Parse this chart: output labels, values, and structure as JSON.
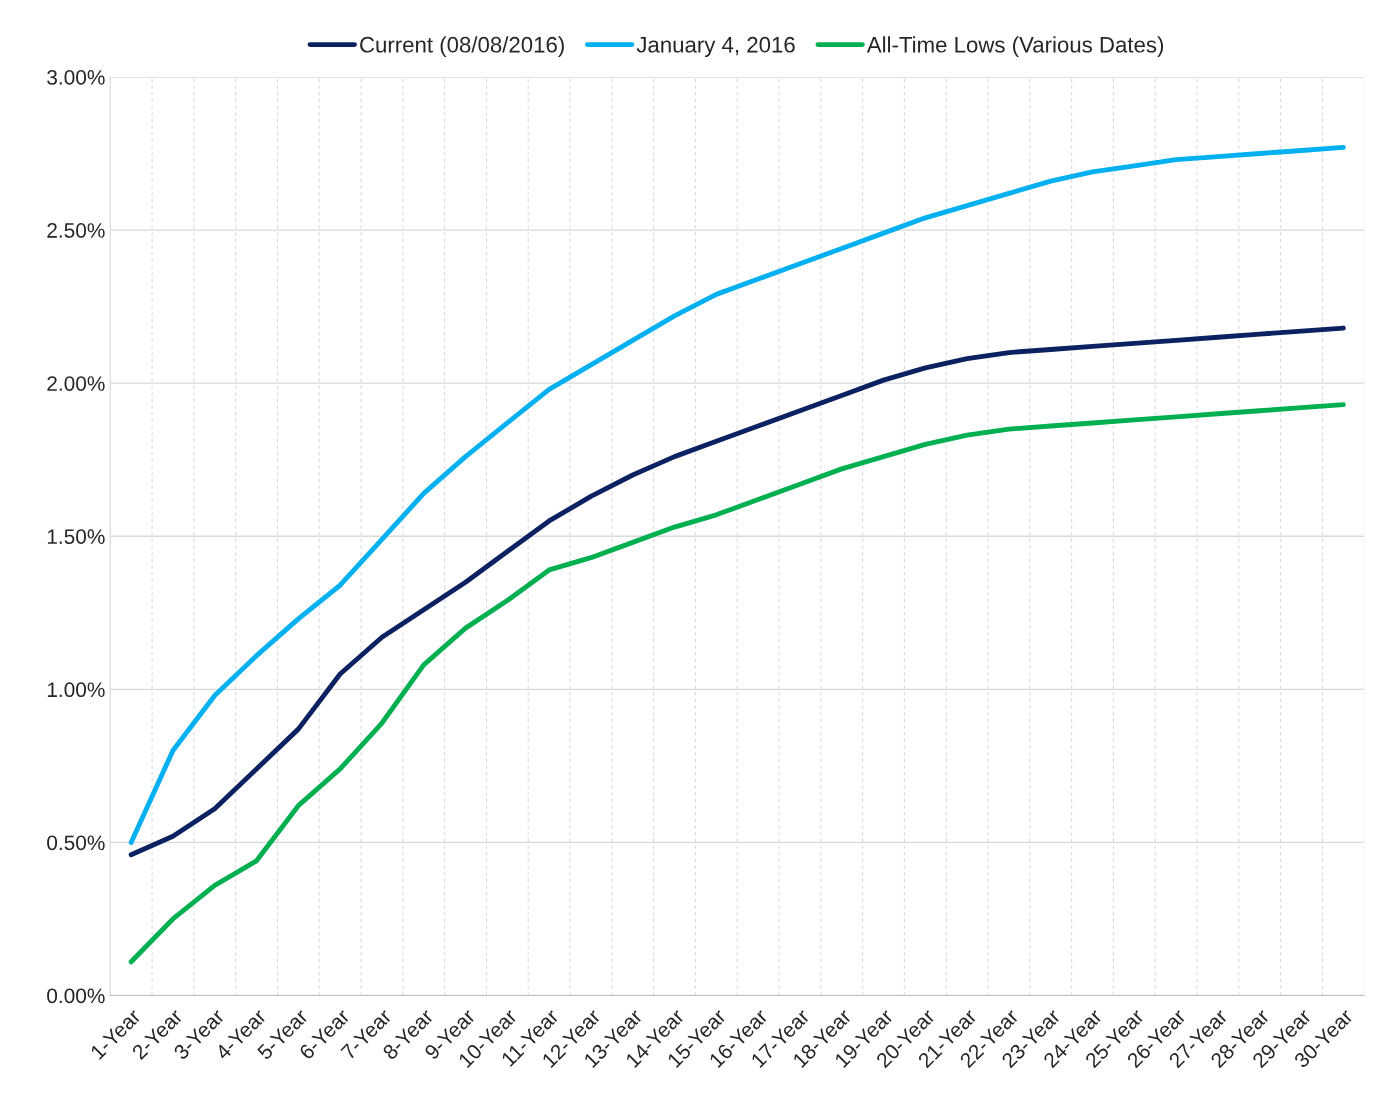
{
  "chart_data": {
    "type": "line",
    "categories": [
      "1-Year",
      "2-Year",
      "3-Year",
      "4-Year",
      "5-Year",
      "6-Year",
      "7-Year",
      "8-Year",
      "9-Year",
      "10-Year",
      "11-Year",
      "12-Year",
      "13-Year",
      "14-Year",
      "15-Year",
      "16-Year",
      "17-Year",
      "18-Year",
      "19-Year",
      "20-Year",
      "21-Year",
      "22-Year",
      "23-Year",
      "24-Year",
      "25-Year",
      "26-Year",
      "27-Year",
      "28-Year",
      "29-Year",
      "30-Year"
    ],
    "series": [
      {
        "name": "Current (08/08/2016)",
        "color": "#0b2161",
        "values": [
          0.46,
          0.52,
          0.61,
          0.74,
          0.87,
          1.05,
          1.17,
          1.26,
          1.35,
          1.45,
          1.55,
          1.63,
          1.7,
          1.76,
          1.81,
          1.86,
          1.91,
          1.96,
          2.01,
          2.05,
          2.08,
          2.1,
          2.11,
          2.12,
          2.13,
          2.14,
          2.15,
          2.16,
          2.17,
          2.18
        ]
      },
      {
        "name": "January 4, 2016",
        "color": "#00b0f0",
        "values": [
          0.5,
          0.8,
          0.98,
          1.11,
          1.23,
          1.34,
          1.49,
          1.64,
          1.76,
          1.87,
          1.98,
          2.06,
          2.14,
          2.22,
          2.29,
          2.34,
          2.39,
          2.44,
          2.49,
          2.54,
          2.58,
          2.62,
          2.66,
          2.69,
          2.71,
          2.73,
          2.74,
          2.75,
          2.76,
          2.77
        ]
      },
      {
        "name": "All-Time Lows (Various Dates)",
        "color": "#00b050",
        "values": [
          0.11,
          0.25,
          0.36,
          0.44,
          0.62,
          0.74,
          0.89,
          1.08,
          1.2,
          1.29,
          1.39,
          1.43,
          1.48,
          1.53,
          1.57,
          1.62,
          1.67,
          1.72,
          1.76,
          1.8,
          1.83,
          1.85,
          1.86,
          1.87,
          1.88,
          1.89,
          1.9,
          1.91,
          1.92,
          1.93
        ]
      }
    ],
    "ylim": [
      0,
      3
    ],
    "yticks": [
      {
        "value": 0,
        "label": "0.00%"
      },
      {
        "value": 0.5,
        "label": "0.50%"
      },
      {
        "value": 1,
        "label": "1.00%"
      },
      {
        "value": 1.5,
        "label": "1.50%"
      },
      {
        "value": 2,
        "label": "2.00%"
      },
      {
        "value": 2.5,
        "label": "2.50%"
      },
      {
        "value": 3,
        "label": "3.00%"
      }
    ],
    "grid": true,
    "legend": "top",
    "marker": "none",
    "line_style": "solid"
  }
}
